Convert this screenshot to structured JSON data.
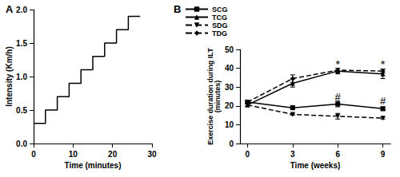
{
  "chart_data": [
    {
      "type": "line",
      "title": "A",
      "x_label": "Time (minutes)",
      "y_label": "Intensity (Km/h)",
      "x": [
        0,
        3,
        6,
        9,
        12,
        15,
        18,
        21,
        24,
        27
      ],
      "series": [
        {
          "color": "#000000",
          "line_style": "step",
          "values": [
            0.3,
            0.5,
            0.7,
            0.9,
            1.1,
            1.3,
            1.5,
            1.7,
            1.9,
            1.9
          ]
        }
      ],
      "xlim": [
        0,
        30
      ],
      "xticks": [
        0,
        10,
        20,
        30
      ],
      "ylim": [
        0,
        2.0
      ],
      "yticks": [
        {
          "value": 0,
          "label": "0.0"
        },
        {
          "value": 0.5,
          "label": "0.5"
        },
        {
          "value": 1.0,
          "label": "1.0"
        },
        {
          "value": 1.5,
          "label": "1.5"
        },
        {
          "value": 2.0,
          "label": "2.0"
        }
      ],
      "grid": false
    },
    {
      "type": "line",
      "title": "B",
      "x_label": "Time (weeks)",
      "y_label": "Exercise duration during ILT\n(minutes)",
      "x": [
        0,
        3,
        6,
        9
      ],
      "series": [
        {
          "name": "SCG",
          "color": "#000000",
          "marker": "square",
          "line_style": "solid",
          "values": [
            22,
            19,
            21,
            18.5
          ],
          "errors": [
            1,
            1,
            1.5,
            1
          ]
        },
        {
          "name": "TCG",
          "color": "#000000",
          "marker": "triangle-up",
          "line_style": "solid",
          "values": [
            20.5,
            32,
            38.5,
            37
          ],
          "errors": [
            1,
            2,
            1.5,
            2.5
          ]
        },
        {
          "name": "SDG",
          "color": "#000000",
          "marker": "triangle-down",
          "line_style": "dashed",
          "values": [
            20.5,
            15.5,
            14.5,
            13.5
          ],
          "errors": [
            0.5,
            0.5,
            1.5,
            0.5
          ]
        },
        {
          "name": "TDG",
          "color": "#000000",
          "marker": "diamond",
          "line_style": "dashed",
          "values": [
            22,
            34.5,
            39,
            38.5
          ],
          "errors": [
            1,
            2,
            1,
            1
          ]
        }
      ],
      "annotations": [
        {
          "text": "*",
          "x": 6,
          "y": 42
        },
        {
          "text": "*",
          "x": 9,
          "y": 42
        },
        {
          "text": "#",
          "x": 6,
          "y": 25
        },
        {
          "text": "#",
          "x": 9,
          "y": 22.5
        }
      ],
      "xlim": [
        -0.5,
        9.5
      ],
      "xticks": [
        0,
        3,
        6,
        9
      ],
      "ylim": [
        0,
        50
      ],
      "yticks": [
        0,
        10,
        20,
        30,
        40,
        50
      ],
      "grid": false,
      "legend": "top-left"
    }
  ]
}
